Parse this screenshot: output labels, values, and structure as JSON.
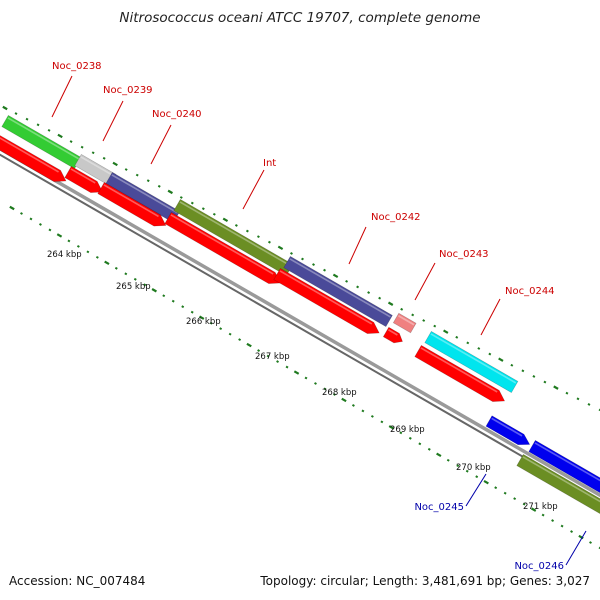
{
  "title": "Nitrosococcus oceani ATCC 19707, complete genome",
  "footer": {
    "accession": "Accession: NC_007484",
    "topology": "Topology: circular; Length: 3,481,691 bp; Genes: 3,027"
  },
  "colors": {
    "backbone": "#8a8a8a",
    "tick_dots": "#1f7a1f",
    "label_red": "#cc0000",
    "label_blue": "#0000aa",
    "cds": "#ff0000",
    "green_gene": "#33cc33",
    "grey_gene": "#c8c8c8",
    "purple_gene": "#4a4a99",
    "olive_gene": "#6b8e23",
    "pink_gene": "#f08080",
    "cyan_gene": "#00e5ee",
    "blue_gene": "#0000ee"
  },
  "tick_labels": [
    "264 kbp",
    "265 kbp",
    "266 kbp",
    "267 kbp",
    "268 kbp",
    "269 kbp",
    "270 kbp",
    "271 kbp"
  ],
  "gene_labels": [
    {
      "text": "Noc_0238",
      "color": "red"
    },
    {
      "text": "Noc_0239",
      "color": "red"
    },
    {
      "text": "Noc_0240",
      "color": "red"
    },
    {
      "text": "Int",
      "color": "red"
    },
    {
      "text": "Noc_0242",
      "color": "red"
    },
    {
      "text": "Noc_0243",
      "color": "red"
    },
    {
      "text": "Noc_0244",
      "color": "red"
    },
    {
      "text": "Noc_0245",
      "color": "blue"
    },
    {
      "text": "Noc_0246",
      "color": "blue"
    }
  ]
}
